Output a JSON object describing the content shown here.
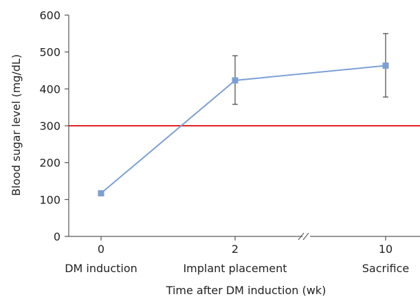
{
  "chart_data": {
    "type": "line",
    "title": "",
    "xlabel": "Time after DM induction (wk)",
    "ylabel": "Blood sugar level (mg/dL)",
    "ylim": [
      0,
      600
    ],
    "yticks": [
      0,
      100,
      200,
      300,
      400,
      500,
      600
    ],
    "x_axis_break": true,
    "categories": [
      {
        "tick": "0",
        "label": "DM induction"
      },
      {
        "tick": "2",
        "label": "Implant placement"
      },
      {
        "tick": "10",
        "label": "Sacrifice"
      }
    ],
    "series": [
      {
        "values": [
          117,
          423,
          463
        ],
        "error_low": [
          null,
          358,
          378
        ],
        "error_high": [
          null,
          490,
          550
        ],
        "color": "#7b9fd4",
        "marker": "square"
      }
    ],
    "threshold": {
      "value": 300,
      "color": "#e02020"
    }
  }
}
